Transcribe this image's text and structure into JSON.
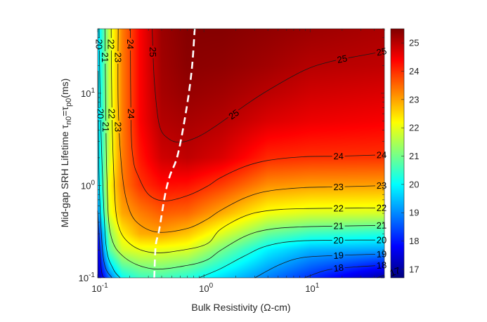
{
  "chart_data": {
    "type": "heatmap",
    "subtype": "filled-contour",
    "xlabel": "Bulk Resistivity (Ω-cm)",
    "ylabel_parts": [
      {
        "text": "Mid-gap SRH Lifetime τ",
        "sub": false
      },
      {
        "text": "n0",
        "sub": true
      },
      {
        "text": "=τ",
        "sub": false
      },
      {
        "text": "p0",
        "sub": true
      },
      {
        "text": "(ms)",
        "sub": false
      }
    ],
    "xscale": "log",
    "yscale": "log",
    "xlim": [
      0.1,
      50
    ],
    "ylim": [
      0.1,
      50
    ],
    "x_ticks": [
      {
        "value": 0.1,
        "base": "10",
        "exp": "-1"
      },
      {
        "value": 1,
        "base": "10",
        "exp": "0"
      },
      {
        "value": 10,
        "base": "10",
        "exp": "1"
      }
    ],
    "y_ticks": [
      {
        "value": 0.1,
        "base": "10",
        "exp": "-1"
      },
      {
        "value": 1,
        "base": "10",
        "exp": "0"
      },
      {
        "value": 10,
        "base": "10",
        "exp": "1"
      }
    ],
    "colorbar": {
      "limits": [
        16.7,
        25.5
      ],
      "ticks": [
        "17",
        "18",
        "19",
        "20",
        "21",
        "22",
        "23",
        "24",
        "25"
      ],
      "colormap": "jet"
    },
    "grid_x": [
      0.1,
      0.13,
      0.17,
      0.25,
      0.4,
      0.7,
      1.5,
      4,
      10,
      50
    ],
    "grid_y": [
      0.1,
      0.2,
      0.3,
      0.5,
      1,
      2,
      5,
      10,
      20,
      50
    ],
    "z": [
      [
        17.0,
        18.8,
        20.05,
        20.5,
        20.6,
        20.3,
        19.7,
        18.9,
        18.2,
        17.0
      ],
      [
        17.5,
        20.8,
        21.8,
        22.0,
        22.0,
        21.9,
        21.0,
        19.9,
        19.35,
        19.2
      ],
      [
        18.0,
        21.2,
        22.3,
        22.9,
        23.0,
        22.7,
        21.9,
        20.9,
        20.5,
        20.3
      ],
      [
        19.0,
        22.0,
        22.95,
        23.3,
        23.6,
        23.5,
        22.9,
        22.1,
        21.9,
        21.85
      ],
      [
        19.5,
        22.2,
        23.3,
        23.95,
        24.3,
        24.25,
        23.85,
        23.15,
        23.03,
        23.0
      ],
      [
        19.6,
        21.9,
        23.3,
        24.2,
        24.8,
        24.95,
        24.7,
        24.05,
        23.98,
        23.96
      ],
      [
        19.6,
        21.8,
        23.3,
        24.4,
        25.05,
        25.15,
        25.03,
        24.7,
        24.55,
        24.45
      ],
      [
        19.6,
        21.8,
        23.3,
        24.4,
        25.15,
        25.3,
        25.2,
        24.98,
        24.8,
        24.7
      ],
      [
        19.6,
        21.8,
        23.3,
        24.4,
        25.2,
        25.4,
        25.35,
        25.2,
        25.03,
        24.95
      ],
      [
        19.6,
        21.8,
        23.3,
        24.4,
        25.25,
        25.45,
        25.45,
        25.35,
        25.25,
        25.12
      ]
    ],
    "contours": [
      {
        "level": 25,
        "segments": [
          [
            [
              0.326,
              50
            ],
            [
              0.341,
              13.9
            ],
            [
              0.38,
              4.56
            ],
            [
              0.464,
              3.22
            ],
            [
              0.603,
              2.95
            ],
            [
              0.858,
              3.33
            ],
            [
              1.26,
              4.33
            ],
            [
              2.51,
              7.57
            ],
            [
              3.98,
              10.7
            ],
            [
              8.58,
              17.5
            ],
            [
              15.1,
              21.9
            ],
            [
              30.7,
              25.7
            ],
            [
              50,
              28.5
            ]
          ]
        ]
      },
      {
        "level": 24,
        "segments": [
          [
            [
              0.203,
              50
            ],
            [
              0.206,
              4.56
            ],
            [
              0.216,
              1.91
            ],
            [
              0.24,
              1.28
            ],
            [
              0.302,
              0.797
            ],
            [
              0.43,
              0.681
            ],
            [
              0.714,
              0.783
            ],
            [
              1.08,
              0.983
            ],
            [
              1.42,
              1.21
            ],
            [
              2.4,
              1.6
            ],
            [
              3.98,
              1.87
            ],
            [
              8.58,
              2.05
            ],
            [
              18.5,
              2.08
            ],
            [
              50,
              2.15
            ]
          ]
        ]
      },
      {
        "level": 23,
        "segments": [
          [
            [
              0.156,
              50
            ],
            [
              0.156,
              7.3
            ],
            [
              0.171,
              1.28
            ],
            [
              0.2,
              0.534
            ],
            [
              0.259,
              0.364
            ],
            [
              0.386,
              0.311
            ],
            [
              0.714,
              0.345
            ],
            [
              1.08,
              0.433
            ],
            [
              1.42,
              0.534
            ],
            [
              2.4,
              0.731
            ],
            [
              3.98,
              0.869
            ],
            [
              8.58,
              0.949
            ],
            [
              18.5,
              0.966
            ],
            [
              50,
              1.0
            ]
          ]
        ]
      },
      {
        "level": 22,
        "segments": [
          [
            [
              0.134,
              50
            ],
            [
              0.136,
              7.3
            ],
            [
              0.142,
              1.28
            ],
            [
              0.154,
              0.397
            ],
            [
              0.2,
              0.235
            ],
            [
              0.331,
              0.187
            ],
            [
              0.651,
              0.201
            ],
            [
              1.08,
              0.235
            ],
            [
              1.42,
              0.333
            ],
            [
              2.4,
              0.464
            ],
            [
              3.98,
              0.534
            ],
            [
              8.58,
              0.562
            ],
            [
              50,
              0.573
            ]
          ]
        ]
      },
      {
        "level": 21,
        "segments": [
          [
            [
              0.117,
              50
            ],
            [
              0.119,
              7.3
            ],
            [
              0.122,
              1.28
            ],
            [
              0.132,
              0.3
            ],
            [
              0.179,
              0.166
            ],
            [
              0.331,
              0.125
            ],
            [
              0.714,
              0.137
            ],
            [
              1.08,
              0.157
            ],
            [
              1.42,
              0.197
            ],
            [
              2.4,
              0.28
            ],
            [
              3.98,
              0.333
            ],
            [
              8.58,
              0.357
            ],
            [
              50,
              0.37
            ]
          ]
        ]
      },
      {
        "level": 20,
        "segments": [
          [
            [
              0.103,
              50
            ],
            [
              0.106,
              7.3
            ],
            [
              0.111,
              1.28
            ],
            [
              0.12,
              0.223
            ],
            [
              0.14,
              0.125
            ],
            [
              0.163,
              0.1
            ]
          ],
          [
            [
              0.898,
              0.1
            ],
            [
              1.42,
              0.125
            ],
            [
              2.4,
              0.172
            ],
            [
              3.98,
              0.223
            ],
            [
              8.58,
              0.252
            ],
            [
              50,
              0.257
            ]
          ]
        ]
      },
      {
        "level": 19,
        "segments": [
          [
            [
              0.101,
              17.5
            ],
            [
              0.103,
              1.28
            ],
            [
              0.113,
              0.166
            ],
            [
              0.136,
              0.1
            ]
          ],
          [
            [
              3.02,
              0.1
            ],
            [
              5.17,
              0.139
            ],
            [
              8.58,
              0.166
            ],
            [
              18.5,
              0.175
            ],
            [
              50,
              0.181
            ]
          ]
        ]
      },
      {
        "level": 18,
        "segments": [
          [
            [
              0.1,
              0.534
            ],
            [
              0.108,
              0.125
            ],
            [
              0.117,
              0.1
            ]
          ],
          [
            [
              8.85,
              0.1
            ],
            [
              14.2,
              0.121
            ],
            [
              24.0,
              0.13
            ],
            [
              50,
              0.137
            ]
          ]
        ]
      },
      {
        "level": 17,
        "segments": [
          [
            [
              42.6,
              0.1
            ],
            [
              50,
              0.107
            ]
          ]
        ]
      }
    ],
    "contour_labels": [
      {
        "text": "20",
        "x": 0.103,
        "y": 34
      },
      {
        "text": "21",
        "x": 0.117,
        "y": 34
      },
      {
        "text": "22",
        "x": 0.134,
        "y": 34
      },
      {
        "text": "23",
        "x": 0.156,
        "y": 34
      },
      {
        "text": "24",
        "x": 0.203,
        "y": 34
      },
      {
        "text": "25",
        "x": 0.33,
        "y": 28
      },
      {
        "text": "20",
        "x": 0.106,
        "y": 6.0
      },
      {
        "text": "21",
        "x": 0.119,
        "y": 6.0
      },
      {
        "text": "22",
        "x": 0.136,
        "y": 6.0
      },
      {
        "text": "23",
        "x": 0.156,
        "y": 6.0
      },
      {
        "text": "24",
        "x": 0.206,
        "y": 6.0
      },
      {
        "text": "25",
        "x": 1.91,
        "y": 5.9
      },
      {
        "text": "25",
        "x": 20,
        "y": 23.5
      },
      {
        "text": "25",
        "x": 47,
        "y": 28.2
      },
      {
        "text": "24",
        "x": 18.5,
        "y": 2.08
      },
      {
        "text": "24",
        "x": 47,
        "y": 2.15
      },
      {
        "text": "23",
        "x": 18.5,
        "y": 0.966
      },
      {
        "text": "23",
        "x": 47,
        "y": 1.0
      },
      {
        "text": "22",
        "x": 18.5,
        "y": 0.566
      },
      {
        "text": "22",
        "x": 47,
        "y": 0.573
      },
      {
        "text": "21",
        "x": 18.5,
        "y": 0.365
      },
      {
        "text": "21",
        "x": 47,
        "y": 0.37
      },
      {
        "text": "20",
        "x": 18.5,
        "y": 0.255
      },
      {
        "text": "20",
        "x": 47,
        "y": 0.257
      },
      {
        "text": "19",
        "x": 18.5,
        "y": 0.175
      },
      {
        "text": "19",
        "x": 47,
        "y": 0.181
      },
      {
        "text": "18",
        "x": 18.5,
        "y": 0.128
      },
      {
        "text": "18",
        "x": 47,
        "y": 0.137
      },
      {
        "text": "17",
        "x": 48,
        "y": 0.104
      }
    ],
    "dashed_line": {
      "color": "#ffffff",
      "points": [
        [
          0.341,
          0.1
        ],
        [
          0.352,
          0.223
        ],
        [
          0.38,
          0.333
        ],
        [
          0.43,
          0.783
        ],
        [
          0.479,
          1.28
        ],
        [
          0.567,
          2.15
        ],
        [
          0.681,
          6.47
        ],
        [
          0.77,
          18.4
        ],
        [
          0.819,
          50
        ]
      ]
    }
  }
}
